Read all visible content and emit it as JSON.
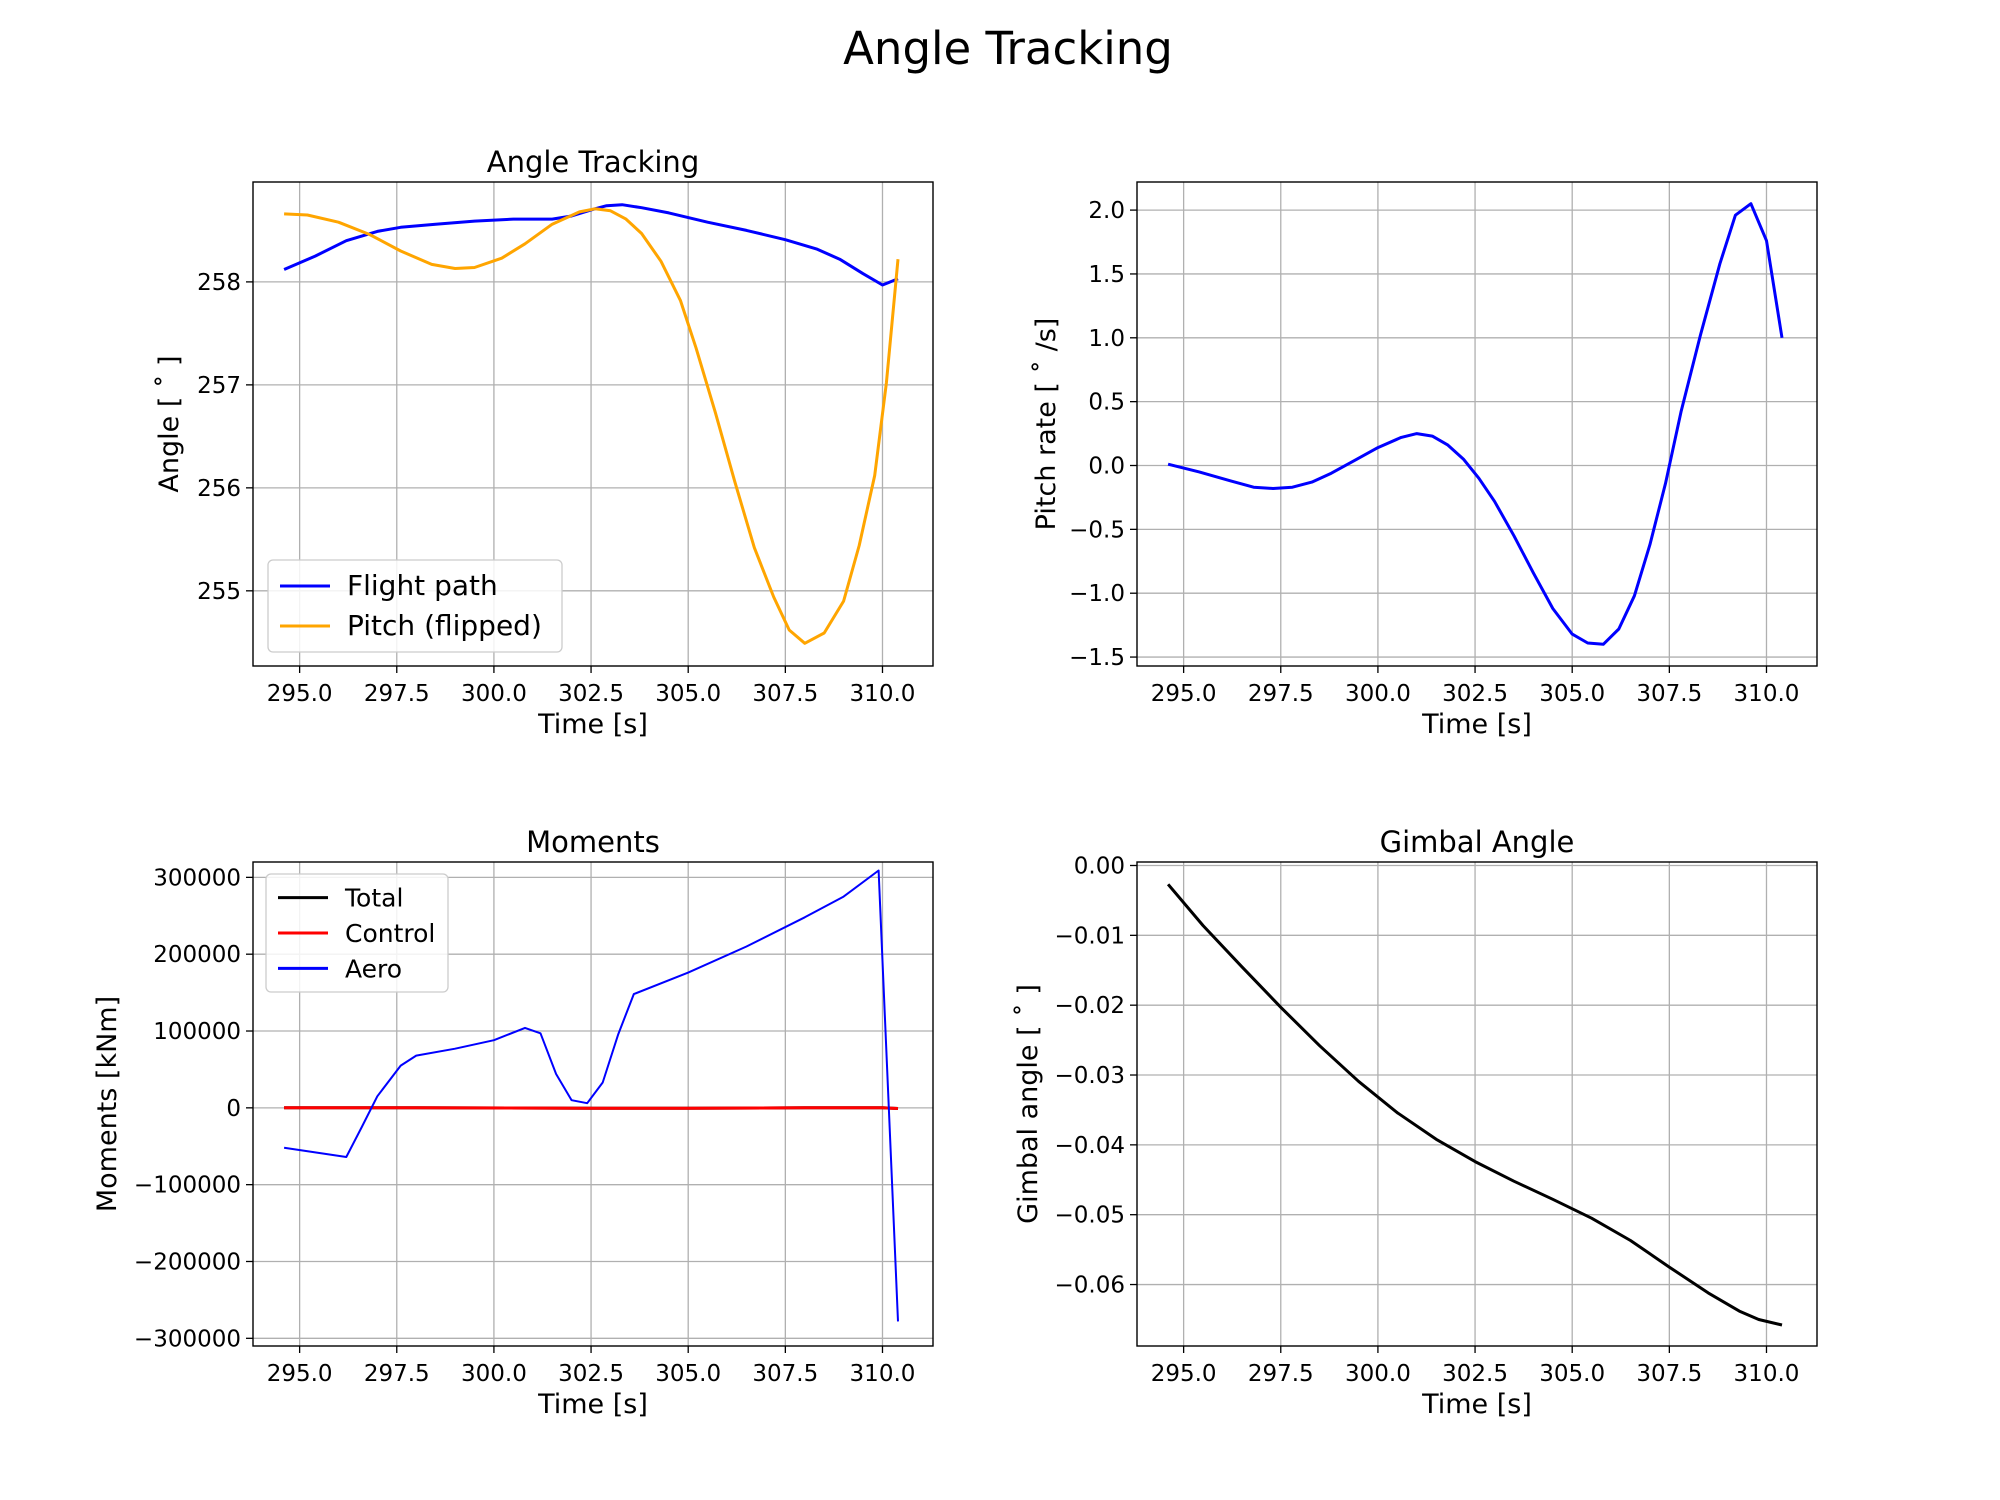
{
  "figure": {
    "title": "Angle Tracking"
  },
  "chart_data": [
    {
      "type": "line",
      "title": "Angle Tracking",
      "xlabel": "Time [s]",
      "ylabel": "Angle [$^\\circ$]",
      "ylabel_display": "Angle [ ˚ ]",
      "xlim": [
        293.8,
        311.3
      ],
      "ylim": [
        254.27,
        258.97
      ],
      "xticks": [
        295.0,
        297.5,
        300.0,
        302.5,
        305.0,
        307.5,
        310.0
      ],
      "xtick_labels": [
        "295.0",
        "297.5",
        "300.0",
        "302.5",
        "305.0",
        "307.5",
        "310.0"
      ],
      "yticks": [
        255,
        256,
        257,
        258
      ],
      "ytick_labels": [
        "255",
        "256",
        "257",
        "258"
      ],
      "grid": true,
      "legend": {
        "placement": "lower-left",
        "entries": [
          "Flight path",
          "Pitch (flipped)"
        ]
      },
      "series": [
        {
          "name": "Flight path",
          "color": "#0000ff",
          "x": [
            294.6,
            295.4,
            296.2,
            297.0,
            297.6,
            298.5,
            299.5,
            300.5,
            301.0,
            301.5,
            302.0,
            302.6,
            302.9,
            303.3,
            303.8,
            304.5,
            305.5,
            306.5,
            307.5,
            308.3,
            308.9,
            309.5,
            310.0,
            310.2,
            310.4
          ],
          "y": [
            258.12,
            258.25,
            258.4,
            258.49,
            258.53,
            258.56,
            258.59,
            258.61,
            258.61,
            258.61,
            258.64,
            258.71,
            258.74,
            258.75,
            258.72,
            258.67,
            258.58,
            258.5,
            258.41,
            258.32,
            258.22,
            258.08,
            257.97,
            258.0,
            258.03
          ]
        },
        {
          "name": "Pitch (flipped)",
          "color": "#ffa500",
          "x": [
            294.6,
            295.2,
            296.0,
            296.8,
            297.6,
            298.4,
            299.0,
            299.5,
            300.2,
            300.8,
            301.5,
            302.2,
            302.6,
            303.0,
            303.4,
            303.8,
            304.3,
            304.8,
            305.2,
            305.7,
            306.2,
            306.7,
            307.2,
            307.6,
            308.0,
            308.5,
            309.0,
            309.4,
            309.8,
            310.1,
            310.4
          ],
          "y": [
            258.66,
            258.65,
            258.58,
            258.46,
            258.3,
            258.17,
            258.13,
            258.14,
            258.23,
            258.37,
            258.56,
            258.68,
            258.71,
            258.69,
            258.61,
            258.47,
            258.2,
            257.82,
            257.36,
            256.73,
            256.06,
            255.42,
            254.94,
            254.62,
            254.49,
            254.59,
            254.9,
            255.44,
            256.12,
            257.02,
            258.22
          ]
        }
      ]
    },
    {
      "type": "line",
      "title": "",
      "xlabel": "Time [s]",
      "ylabel": "Pitch rate [$^\\circ$/s]",
      "ylabel_display": "Pitch rate [ ˚ /s]",
      "xlim": [
        293.8,
        311.3
      ],
      "ylim": [
        -1.57,
        2.22
      ],
      "xticks": [
        295.0,
        297.5,
        300.0,
        302.5,
        305.0,
        307.5,
        310.0
      ],
      "xtick_labels": [
        "295.0",
        "297.5",
        "300.0",
        "302.5",
        "305.0",
        "307.5",
        "310.0"
      ],
      "yticks": [
        -1.5,
        -1.0,
        -0.5,
        0.0,
        0.5,
        1.0,
        1.5,
        2.0
      ],
      "ytick_labels": [
        "−1.5",
        "−1.0",
        "−0.5",
        "0.0",
        "0.5",
        "1.0",
        "1.5",
        "2.0"
      ],
      "grid": true,
      "series": [
        {
          "color": "#0000ff",
          "x": [
            294.6,
            295.4,
            296.2,
            296.8,
            297.3,
            297.8,
            298.3,
            298.8,
            299.4,
            300.0,
            300.6,
            301.0,
            301.4,
            301.8,
            302.2,
            302.6,
            303.0,
            303.5,
            304.0,
            304.5,
            305.0,
            305.4,
            305.8,
            306.2,
            306.6,
            307.0,
            307.4,
            307.8,
            308.3,
            308.8,
            309.2,
            309.6,
            310.0,
            310.4
          ],
          "y": [
            0.01,
            -0.05,
            -0.12,
            -0.17,
            -0.18,
            -0.17,
            -0.13,
            -0.06,
            0.04,
            0.14,
            0.22,
            0.25,
            0.23,
            0.16,
            0.05,
            -0.1,
            -0.28,
            -0.55,
            -0.84,
            -1.12,
            -1.32,
            -1.39,
            -1.4,
            -1.28,
            -1.02,
            -0.62,
            -0.14,
            0.42,
            1.02,
            1.58,
            1.96,
            2.05,
            1.76,
            1.0
          ]
        }
      ]
    },
    {
      "type": "line",
      "title": "Moments",
      "xlabel": "Time [s]",
      "ylabel": "Moments [kNm]",
      "xlim": [
        293.8,
        311.3
      ],
      "ylim": [
        -310000,
        320000
      ],
      "xticks": [
        295.0,
        297.5,
        300.0,
        302.5,
        305.0,
        307.5,
        310.0
      ],
      "xtick_labels": [
        "295.0",
        "297.5",
        "300.0",
        "302.5",
        "305.0",
        "307.5",
        "310.0"
      ],
      "yticks": [
        -300000,
        -200000,
        -100000,
        0,
        100000,
        200000,
        300000
      ],
      "ytick_labels": [
        "−300000",
        "−200000",
        "−100000",
        "0",
        "100000",
        "200000",
        "300000"
      ],
      "grid": true,
      "legend": {
        "placement": "upper-left",
        "entries": [
          "Total",
          "Control",
          "Aero"
        ]
      },
      "series": [
        {
          "name": "Total",
          "color": "#000000",
          "x": [
            294.6,
            298.0,
            302.5,
            305.0,
            308.0,
            310.0,
            310.4
          ],
          "y": [
            0,
            0,
            -500,
            -500,
            0,
            0,
            -800
          ]
        },
        {
          "name": "Control",
          "color": "#ff0000",
          "x": [
            294.6,
            298.0,
            302.5,
            305.0,
            308.0,
            310.0,
            310.4
          ],
          "y": [
            0,
            0,
            -500,
            -500,
            0,
            0,
            -800
          ]
        },
        {
          "name": "Aero",
          "color": "#0000ff",
          "x": [
            294.6,
            296.2,
            296.6,
            297.0,
            297.6,
            298.0,
            299.0,
            300.0,
            300.8,
            301.2,
            301.6,
            302.0,
            302.4,
            302.8,
            303.2,
            303.6,
            305.0,
            306.5,
            308.0,
            309.0,
            309.9,
            310.4
          ],
          "y": [
            -52000,
            -64000,
            -25000,
            15000,
            55000,
            68000,
            77000,
            88000,
            104000,
            97000,
            44000,
            10000,
            6000,
            33000,
            96000,
            148000,
            176000,
            210000,
            248000,
            275000,
            309000,
            -278000
          ]
        }
      ]
    },
    {
      "type": "line",
      "title": "Gimbal Angle",
      "xlabel": "Time [s]",
      "ylabel": "Gimbal angle [$^\\circ$]",
      "ylabel_display": "Gimbal angle [ ˚ ]",
      "xlim": [
        293.8,
        311.3
      ],
      "ylim": [
        -0.0688,
        0.0005
      ],
      "xticks": [
        295.0,
        297.5,
        300.0,
        302.5,
        305.0,
        307.5,
        310.0
      ],
      "xtick_labels": [
        "295.0",
        "297.5",
        "300.0",
        "302.5",
        "305.0",
        "307.5",
        "310.0"
      ],
      "yticks": [
        0.0,
        -0.01,
        -0.02,
        -0.03,
        -0.04,
        -0.05,
        -0.06
      ],
      "ytick_labels": [
        "0.00",
        "−0.01",
        "−0.02",
        "−0.03",
        "−0.04",
        "−0.05",
        "−0.06"
      ],
      "grid": true,
      "series": [
        {
          "color": "#000000",
          "x": [
            294.6,
            295.5,
            296.5,
            297.5,
            298.5,
            299.5,
            300.5,
            301.5,
            302.5,
            303.5,
            304.5,
            305.5,
            306.5,
            307.5,
            308.5,
            309.3,
            309.8,
            310.4
          ],
          "y": [
            -0.0027,
            -0.0086,
            -0.0145,
            -0.0203,
            -0.0258,
            -0.0309,
            -0.0354,
            -0.0392,
            -0.0424,
            -0.0452,
            -0.0478,
            -0.0505,
            -0.0537,
            -0.0575,
            -0.0612,
            -0.0638,
            -0.065,
            -0.0658
          ]
        }
      ]
    }
  ]
}
